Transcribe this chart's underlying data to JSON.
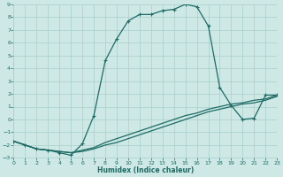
{
  "xlabel": "Humidex (Indice chaleur)",
  "background_color": "#cde8e5",
  "grid_color": "#aacfcc",
  "line_color": "#1e6b65",
  "xlim": [
    0,
    23
  ],
  "ylim": [
    -3,
    9
  ],
  "xticks": [
    0,
    1,
    2,
    3,
    4,
    5,
    6,
    7,
    8,
    9,
    10,
    11,
    12,
    13,
    14,
    15,
    16,
    17,
    18,
    19,
    20,
    21,
    22,
    23
  ],
  "yticks": [
    -3,
    -2,
    -1,
    0,
    1,
    2,
    3,
    4,
    5,
    6,
    7,
    8,
    9
  ],
  "curve1_x": [
    0,
    1,
    2,
    3,
    4,
    5,
    6,
    7,
    8,
    9,
    10,
    11,
    12,
    13,
    14,
    15,
    16,
    17,
    18,
    19,
    20,
    21,
    22,
    23
  ],
  "curve1_y": [
    -1.7,
    -2.0,
    -2.3,
    -2.4,
    -2.6,
    -2.8,
    -1.9,
    0.3,
    4.6,
    6.3,
    7.7,
    8.2,
    8.2,
    8.5,
    8.6,
    9.0,
    8.8,
    7.3,
    2.5,
    1.1,
    0.0,
    0.1,
    1.9,
    1.9
  ],
  "curve2_x": [
    0,
    1,
    2,
    3,
    4,
    5,
    6,
    7,
    8,
    9,
    10,
    11,
    12,
    13,
    14,
    15,
    16,
    17,
    18,
    19,
    20,
    21,
    22,
    23
  ],
  "curve2_y": [
    -1.7,
    -2.0,
    -2.3,
    -2.4,
    -2.5,
    -2.6,
    -2.5,
    -2.3,
    -2.0,
    -1.8,
    -1.5,
    -1.2,
    -0.9,
    -0.6,
    -0.3,
    0.0,
    0.3,
    0.6,
    0.8,
    1.0,
    1.2,
    1.3,
    1.5,
    1.8
  ],
  "curve3_x": [
    0,
    1,
    2,
    3,
    4,
    5,
    6,
    7,
    8,
    9,
    10,
    11,
    12,
    13,
    14,
    15,
    16,
    17,
    18,
    19,
    20,
    21,
    22,
    23
  ],
  "curve3_y": [
    -1.7,
    -2.0,
    -2.3,
    -2.4,
    -2.5,
    -2.6,
    -2.4,
    -2.2,
    -1.8,
    -1.5,
    -1.2,
    -0.9,
    -0.6,
    -0.3,
    0.0,
    0.3,
    0.5,
    0.8,
    1.0,
    1.2,
    1.3,
    1.5,
    1.6,
    1.9
  ]
}
